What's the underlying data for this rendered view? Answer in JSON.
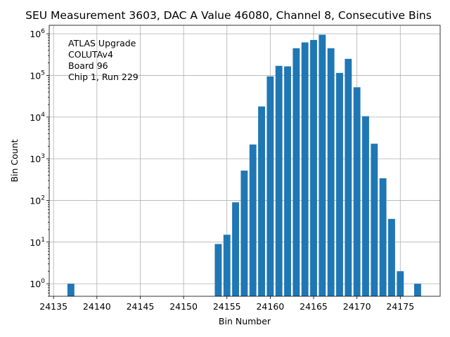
{
  "chart_data": {
    "type": "bar",
    "title": "SEU Measurement 3603, DAC A Value 46080, Channel 8, Consecutive Bins",
    "xlabel": "Bin Number",
    "ylabel": "Bin Count",
    "yscale": "log",
    "xlim": [
      24134.5,
      24179.6
    ],
    "ylim": [
      0.5,
      1600000
    ],
    "grid": true,
    "x_ticks": [
      24135,
      24140,
      24145,
      24150,
      24155,
      24160,
      24165,
      24170,
      24175
    ],
    "y_ticks": [
      {
        "value": 1,
        "base": "10",
        "exp": "0"
      },
      {
        "value": 10,
        "base": "10",
        "exp": "1"
      },
      {
        "value": 100,
        "base": "10",
        "exp": "2"
      },
      {
        "value": 1000,
        "base": "10",
        "exp": "3"
      },
      {
        "value": 10000,
        "base": "10",
        "exp": "4"
      },
      {
        "value": 100000,
        "base": "10",
        "exp": "5"
      },
      {
        "value": 1000000,
        "base": "10",
        "exp": "6"
      }
    ],
    "annotation": [
      "ATLAS Upgrade",
      "COLUTAv4",
      " Board 96",
      "Chip 1, Run 229"
    ],
    "x": [
      24137,
      24154,
      24155,
      24156,
      24157,
      24158,
      24159,
      24160,
      24161,
      24162,
      24163,
      24164,
      24165,
      24166,
      24167,
      24168,
      24169,
      24170,
      24171,
      24172,
      24173,
      24174,
      24175,
      24177
    ],
    "values": [
      1,
      9,
      15,
      90,
      520,
      2200,
      18000,
      95000,
      170000,
      165000,
      450000,
      620000,
      710000,
      950000,
      450000,
      115000,
      250000,
      52000,
      10500,
      2300,
      340,
      36,
      2,
      1
    ]
  }
}
